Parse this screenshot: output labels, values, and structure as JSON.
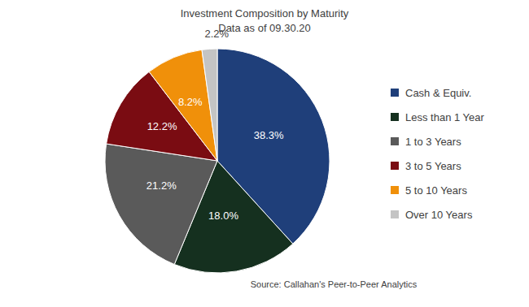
{
  "chart_data": {
    "type": "pie",
    "title": "Investment Composition by Maturity",
    "subtitle": "Data as of 09.30.20",
    "source": "Source: Callahan's Peer-to-Peer Analytics",
    "categories": [
      "Cash & Equiv.",
      "Less than 1 Year",
      "1 to 3 Years",
      "3 to 5 Years",
      "5 to 10 Years",
      "Over 10 Years"
    ],
    "values": [
      38.3,
      18.0,
      21.2,
      12.2,
      8.2,
      2.2
    ],
    "value_labels": [
      "38.3%",
      "18.0%",
      "21.2%",
      "12.2%",
      "8.2%",
      "2.2%"
    ],
    "colors": [
      "#1f3f7a",
      "#15301f",
      "#5a5a5a",
      "#7a0c12",
      "#f0900a",
      "#c4c4c4"
    ],
    "data_labels": true,
    "legend": "right"
  }
}
